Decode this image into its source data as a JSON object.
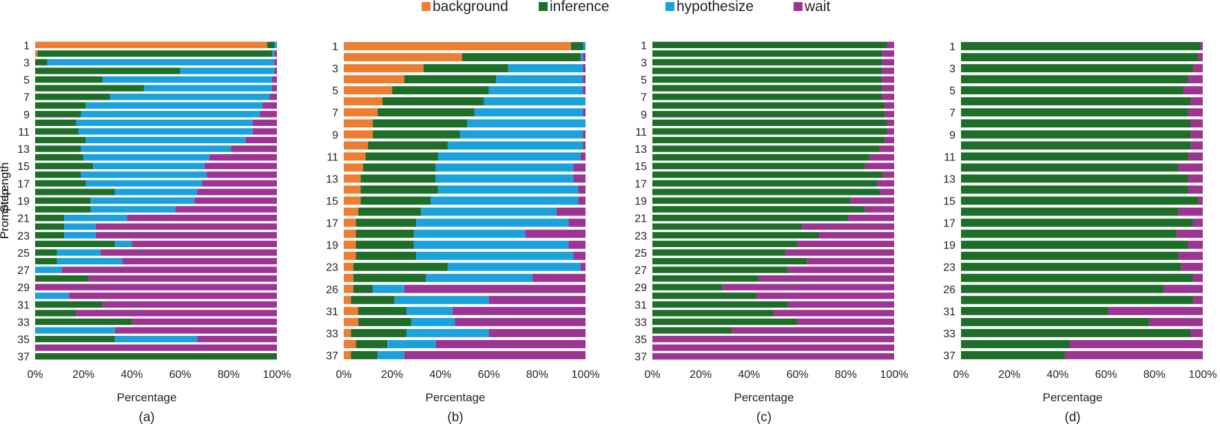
{
  "legend": [
    {
      "name": "background",
      "color": "#ED7D31"
    },
    {
      "name": "inference",
      "color": "#1E6E2A"
    },
    {
      "name": "hypothesize",
      "color": "#1BA1DC"
    },
    {
      "name": "wait",
      "color": "#9C3493"
    }
  ],
  "chart_data": [
    {
      "type": "bar",
      "orientation": "horizontal",
      "stacked": "percent",
      "title": "",
      "caption": "(a)",
      "xlabel": "Percentage",
      "ylabel": "Step",
      "xlim": [
        0,
        100
      ],
      "x_ticks": [
        "0%",
        "20%",
        "40%",
        "60%",
        "80%",
        "100%"
      ],
      "categories": [
        1,
        2,
        3,
        4,
        5,
        6,
        7,
        8,
        9,
        10,
        11,
        12,
        13,
        14,
        15,
        16,
        17,
        18,
        19,
        20,
        21,
        22,
        23,
        24,
        25,
        26,
        27,
        28,
        29,
        30,
        31,
        32,
        33,
        34,
        35,
        36,
        37
      ],
      "tick_labels": [
        "1",
        "3",
        "5",
        "7",
        "9",
        "11",
        "13",
        "15",
        "17",
        "19",
        "21",
        "23",
        "25",
        "27",
        "29",
        "31",
        "33",
        "35",
        "37"
      ],
      "series": [
        {
          "name": "background",
          "values": [
            96,
            1,
            0,
            0,
            0,
            0,
            0,
            0,
            0,
            0,
            0,
            0,
            0,
            0,
            0,
            0,
            0,
            0,
            0,
            0,
            0,
            0,
            0,
            0,
            0,
            0,
            0,
            0,
            0,
            0,
            0,
            0,
            0,
            0,
            0,
            0,
            0
          ]
        },
        {
          "name": "inference",
          "values": [
            3,
            97,
            5,
            60,
            28,
            45,
            31,
            21,
            19,
            17,
            18,
            21,
            19,
            20,
            24,
            19,
            21,
            33,
            23,
            23,
            12,
            12,
            12,
            33,
            9,
            9,
            0,
            22,
            0,
            0,
            28,
            17,
            40,
            0,
            33,
            0,
            100
          ]
        },
        {
          "name": "hypothesize",
          "values": [
            1,
            1,
            94,
            39,
            70,
            53,
            66,
            73,
            74,
            73,
            72,
            66,
            62,
            52,
            46,
            52,
            48,
            34,
            43,
            35,
            26,
            13,
            13,
            7,
            18,
            27,
            11,
            0,
            0,
            14,
            0,
            0,
            0,
            33,
            34,
            0,
            0
          ]
        },
        {
          "name": "wait",
          "values": [
            0,
            1,
            1,
            1,
            2,
            2,
            3,
            6,
            7,
            10,
            10,
            13,
            19,
            28,
            30,
            29,
            31,
            33,
            34,
            42,
            62,
            75,
            75,
            60,
            73,
            64,
            89,
            78,
            100,
            86,
            72,
            83,
            60,
            67,
            33,
            100,
            0
          ]
        }
      ]
    },
    {
      "type": "bar",
      "orientation": "horizontal",
      "stacked": "percent",
      "title": "",
      "caption": "(b)",
      "xlabel": "Percentage",
      "ylabel": "Prompt Length",
      "xlim": [
        0,
        100
      ],
      "x_ticks": [
        "0%",
        "20%",
        "40%",
        "60%",
        "80%",
        "100%"
      ],
      "categories": [
        1,
        2,
        3,
        4,
        5,
        6,
        7,
        8,
        9,
        10,
        11,
        12,
        13,
        14,
        15,
        16,
        17,
        18,
        19,
        20,
        23,
        24,
        26,
        27,
        31,
        32,
        33,
        34,
        37
      ],
      "tick_labels": [
        "1",
        "3",
        "5",
        "7",
        "9",
        "11",
        "13",
        "15",
        "17",
        "19",
        "23",
        "26",
        "31",
        "33",
        "37"
      ],
      "series": [
        {
          "name": "background",
          "values": [
            94,
            49,
            33,
            25,
            20,
            16,
            14,
            12,
            12,
            10,
            9,
            8,
            7,
            7,
            7,
            6,
            5,
            5,
            5,
            5,
            4,
            4,
            4,
            3,
            6,
            6,
            3,
            5,
            3
          ]
        },
        {
          "name": "inference",
          "values": [
            5,
            49,
            35,
            38,
            40,
            42,
            40,
            39,
            36,
            33,
            30,
            30,
            31,
            32,
            29,
            26,
            25,
            24,
            24,
            25,
            39,
            30,
            8,
            18,
            20,
            22,
            23,
            13,
            11
          ]
        },
        {
          "name": "hypothesize",
          "values": [
            1,
            1,
            31,
            36,
            39,
            42,
            45,
            49,
            51,
            56,
            59,
            57,
            57,
            58,
            61,
            56,
            63,
            46,
            64,
            65,
            55,
            44,
            13,
            39,
            19,
            18,
            34,
            20,
            11
          ]
        },
        {
          "name": "wait",
          "values": [
            0,
            1,
            1,
            1,
            1,
            0,
            1,
            0,
            1,
            1,
            2,
            5,
            5,
            3,
            3,
            12,
            7,
            25,
            7,
            5,
            2,
            22,
            75,
            40,
            55,
            54,
            40,
            62,
            75
          ]
        }
      ]
    },
    {
      "type": "bar",
      "orientation": "horizontal",
      "stacked": "percent",
      "title": "",
      "caption": "(c)",
      "xlabel": "Percentage",
      "ylabel": "Step",
      "xlim": [
        0,
        100
      ],
      "x_ticks": [
        "0%",
        "20%",
        "40%",
        "60%",
        "80%",
        "100%"
      ],
      "categories": [
        1,
        2,
        3,
        4,
        5,
        6,
        7,
        8,
        9,
        10,
        11,
        12,
        13,
        14,
        15,
        16,
        17,
        18,
        19,
        20,
        21,
        22,
        23,
        24,
        25,
        26,
        27,
        28,
        29,
        30,
        31,
        32,
        33,
        34,
        35,
        36,
        37
      ],
      "tick_labels": [
        "1",
        "3",
        "5",
        "7",
        "9",
        "11",
        "13",
        "15",
        "17",
        "19",
        "21",
        "23",
        "25",
        "27",
        "29",
        "31",
        "33",
        "35",
        "37"
      ],
      "series": [
        {
          "name": "inference",
          "values": [
            97,
            95,
            95,
            95,
            95,
            95,
            95,
            96,
            96,
            97,
            97,
            96,
            94,
            90,
            88,
            95,
            93,
            94,
            82,
            88,
            81,
            62,
            69,
            60,
            55,
            64,
            56,
            44,
            29,
            43,
            56,
            50,
            60,
            33,
            0,
            0,
            0
          ]
        },
        {
          "name": "wait",
          "values": [
            3,
            5,
            5,
            5,
            5,
            5,
            5,
            4,
            4,
            3,
            3,
            4,
            6,
            10,
            12,
            5,
            7,
            6,
            18,
            12,
            19,
            38,
            31,
            40,
            45,
            36,
            44,
            56,
            71,
            57,
            44,
            50,
            40,
            67,
            100,
            100,
            100
          ]
        }
      ]
    },
    {
      "type": "bar",
      "orientation": "horizontal",
      "stacked": "percent",
      "title": "",
      "caption": "(d)",
      "xlabel": "Percentage",
      "ylabel": "Prompt Length",
      "xlim": [
        0,
        100
      ],
      "x_ticks": [
        "0%",
        "20%",
        "40%",
        "60%",
        "80%",
        "100%"
      ],
      "categories": [
        1,
        2,
        3,
        4,
        5,
        6,
        7,
        8,
        9,
        10,
        11,
        12,
        13,
        14,
        15,
        16,
        17,
        18,
        19,
        20,
        23,
        24,
        26,
        27,
        31,
        32,
        33,
        34,
        37
      ],
      "tick_labels": [
        "1",
        "3",
        "5",
        "7",
        "9",
        "11",
        "13",
        "15",
        "17",
        "19",
        "23",
        "26",
        "31",
        "33",
        "37"
      ],
      "series": [
        {
          "name": "inference",
          "values": [
            99,
            98,
            96,
            94,
            92,
            95,
            94,
            95,
            95,
            95,
            94,
            90,
            94,
            94,
            98,
            90,
            96,
            89,
            94,
            90,
            91,
            96,
            84,
            96,
            61,
            78,
            95,
            45,
            43
          ]
        },
        {
          "name": "wait",
          "values": [
            1,
            2,
            4,
            6,
            8,
            5,
            6,
            5,
            5,
            5,
            6,
            10,
            6,
            6,
            2,
            10,
            4,
            11,
            6,
            10,
            9,
            4,
            16,
            4,
            39,
            22,
            5,
            55,
            57
          ]
        }
      ]
    }
  ]
}
